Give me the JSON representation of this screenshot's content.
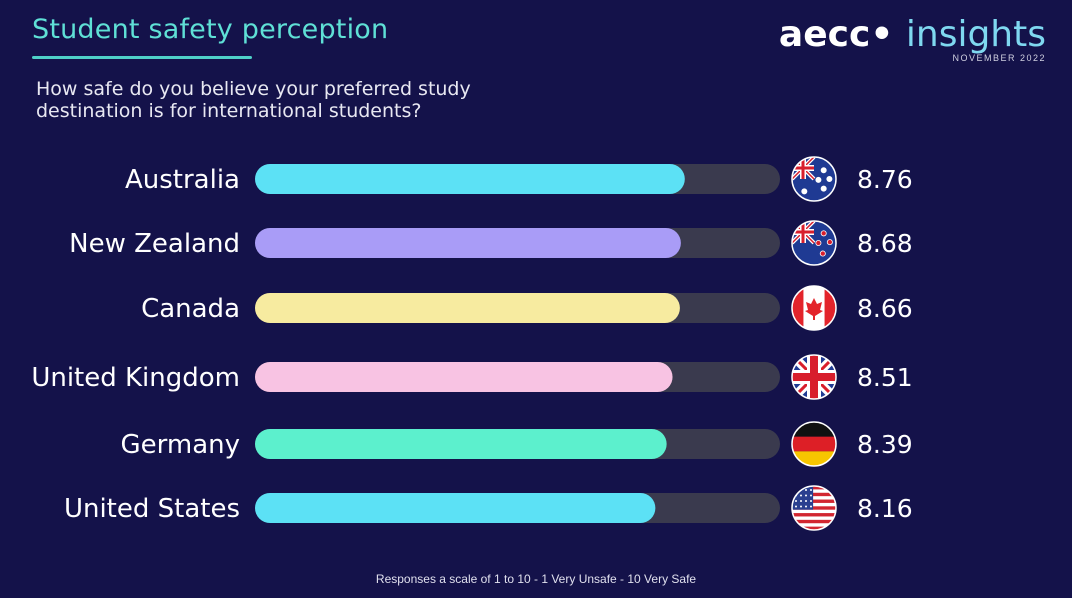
{
  "header": {
    "title": "Student safety perception",
    "subtitle": "How safe do you believe your preferred study destination is for international students?",
    "logo_main": "aecc",
    "logo_accent": "insights",
    "logo_date": "NOVEMBER 2022"
  },
  "footer": {
    "note": "Responses a scale of 1 to 10 - 1 Very Unsafe - 10 Very Safe"
  },
  "colors": {
    "background": "#14124a",
    "track": "#3a3a4e",
    "australia": "#5ce1f5",
    "new_zealand": "#a99cf7",
    "canada": "#f7eba0",
    "united_kingdom": "#f8c3e3",
    "germany": "#5cf0cd",
    "united_states": "#5ce1f5"
  },
  "chart_data": {
    "type": "bar",
    "orientation": "horizontal",
    "categories": [
      "Australia",
      "New Zealand",
      "Canada",
      "United Kingdom",
      "Germany",
      "United States"
    ],
    "values": [
      8.76,
      8.68,
      8.66,
      8.51,
      8.39,
      8.16
    ],
    "value_labels": [
      "8.76",
      "8.68",
      "8.66",
      "8.51",
      "8.39",
      "8.16"
    ],
    "flags": [
      "australia-flag-icon",
      "new-zealand-flag-icon",
      "canada-flag-icon",
      "united-kingdom-flag-icon",
      "germany-flag-icon",
      "united-states-flag-icon"
    ],
    "bar_colors": [
      "#5ce1f5",
      "#a99cf7",
      "#f7eba0",
      "#f8c3e3",
      "#5cf0cd",
      "#5ce1f5"
    ],
    "xlim": [
      0,
      10.7
    ],
    "grid": false,
    "legend": "none"
  }
}
